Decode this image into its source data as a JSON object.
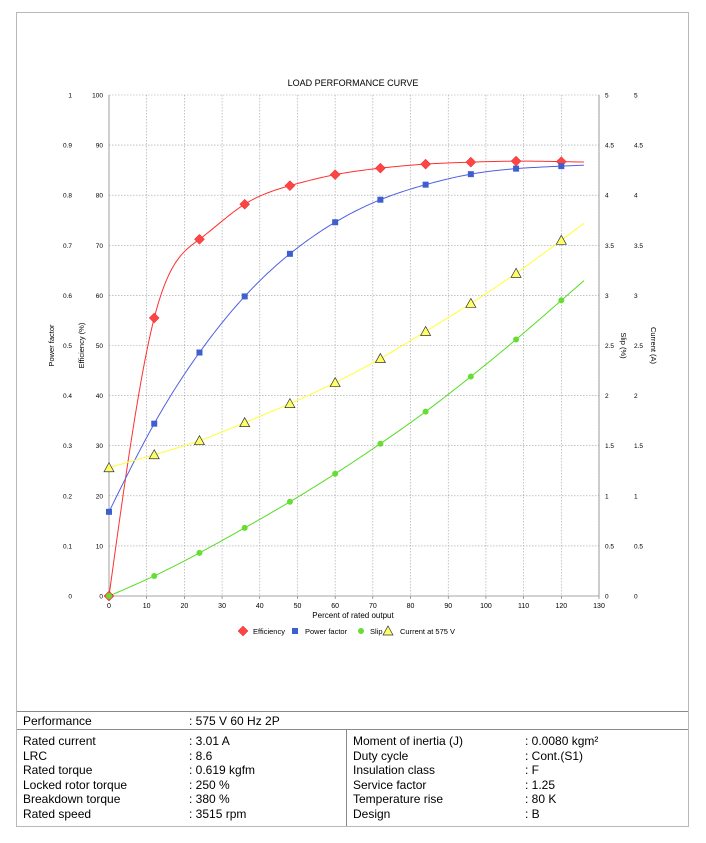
{
  "chart_data": {
    "type": "line",
    "title": "LOAD PERFORMANCE CURVE",
    "xlabel": "Percent of rated output",
    "xlim": [
      0,
      130
    ],
    "x_ticks": [
      0,
      10,
      20,
      30,
      40,
      50,
      60,
      70,
      80,
      90,
      100,
      110,
      120,
      130
    ],
    "axes": [
      {
        "id": "pf",
        "label": "Power factor",
        "side": "left-outer",
        "range": [
          0,
          1
        ],
        "ticks": [
          "0",
          "0.1",
          "0.2",
          "0.3",
          "0.4",
          "0.5",
          "0.6",
          "0.7",
          "0.8",
          "0.9",
          "1"
        ]
      },
      {
        "id": "eff",
        "label": "Efficiency (%)",
        "side": "left-inner",
        "range": [
          0,
          100
        ],
        "ticks": [
          "0",
          "10",
          "20",
          "30",
          "40",
          "50",
          "60",
          "70",
          "80",
          "90",
          "100"
        ]
      },
      {
        "id": "slip",
        "label": "Slip (%)",
        "side": "right-inner",
        "range": [
          0,
          5
        ],
        "ticks": [
          "0",
          "0.5",
          "1",
          "1.5",
          "2",
          "2.5",
          "3",
          "3.5",
          "4",
          "4.5",
          "5"
        ]
      },
      {
        "id": "cur",
        "label": "Current (A)",
        "side": "right-outer",
        "range": [
          0,
          5
        ],
        "ticks": [
          "0",
          "0.5",
          "1",
          "1.5",
          "2",
          "2.5",
          "3",
          "3.5",
          "4",
          "4.5",
          "5"
        ]
      }
    ],
    "grid": true,
    "legend_position": "bottom",
    "x": [
      0,
      12,
      24,
      36,
      48,
      60,
      72,
      84,
      96,
      108,
      120
    ],
    "series": [
      {
        "name": "Efficiency",
        "axis": "eff",
        "marker": "diamond",
        "color": "#ff4444",
        "line_color": "#ff3030",
        "values": [
          0,
          55.5,
          71.2,
          78.2,
          81.9,
          84.1,
          85.4,
          86.2,
          86.6,
          86.8,
          86.7
        ],
        "curve_end": 126
      },
      {
        "name": "Power factor",
        "axis": "pf",
        "marker": "square",
        "color": "#3f5fcf",
        "line_color": "#5060e0",
        "values": [
          0.168,
          0.344,
          0.486,
          0.598,
          0.683,
          0.746,
          0.791,
          0.821,
          0.842,
          0.853,
          0.858
        ],
        "curve_end": 126
      },
      {
        "name": "Slip",
        "axis": "slip",
        "marker": "circle",
        "color": "#66dd33",
        "line_color": "#55dd22",
        "values": [
          0,
          0.2,
          0.43,
          0.68,
          0.94,
          1.22,
          1.52,
          1.84,
          2.19,
          2.56,
          2.95
        ],
        "curve_end": 126
      },
      {
        "name": "Current at 575 V",
        "axis": "cur",
        "marker": "triangle",
        "color": "#ffff66",
        "line_color": "#ffff33",
        "values": [
          1.28,
          1.41,
          1.55,
          1.73,
          1.92,
          2.13,
          2.37,
          2.64,
          2.92,
          3.22,
          3.55
        ],
        "curve_end": 126
      }
    ]
  },
  "specs": {
    "performance": {
      "label": "Performance",
      "value": ": 575 V 60 Hz 2P"
    },
    "left": [
      {
        "label": "Rated current",
        "value": ": 3.01 A"
      },
      {
        "label": "LRC",
        "value": ": 8.6"
      },
      {
        "label": "Rated torque",
        "value": ": 0.619 kgfm"
      },
      {
        "label": "Locked rotor torque",
        "value": ": 250 %"
      },
      {
        "label": "Breakdown torque",
        "value": ": 380 %"
      },
      {
        "label": "Rated speed",
        "value": ": 3515 rpm"
      }
    ],
    "right": [
      {
        "label": "Moment of inertia (J)",
        "value": ": 0.0080 kgm²"
      },
      {
        "label": "Duty cycle",
        "value": ": Cont.(S1)"
      },
      {
        "label": "Insulation class",
        "value": ": F"
      },
      {
        "label": "Service factor",
        "value": ": 1.25"
      },
      {
        "label": "Temperature rise",
        "value": ": 80 K"
      },
      {
        "label": "Design",
        "value": ": B"
      }
    ]
  }
}
